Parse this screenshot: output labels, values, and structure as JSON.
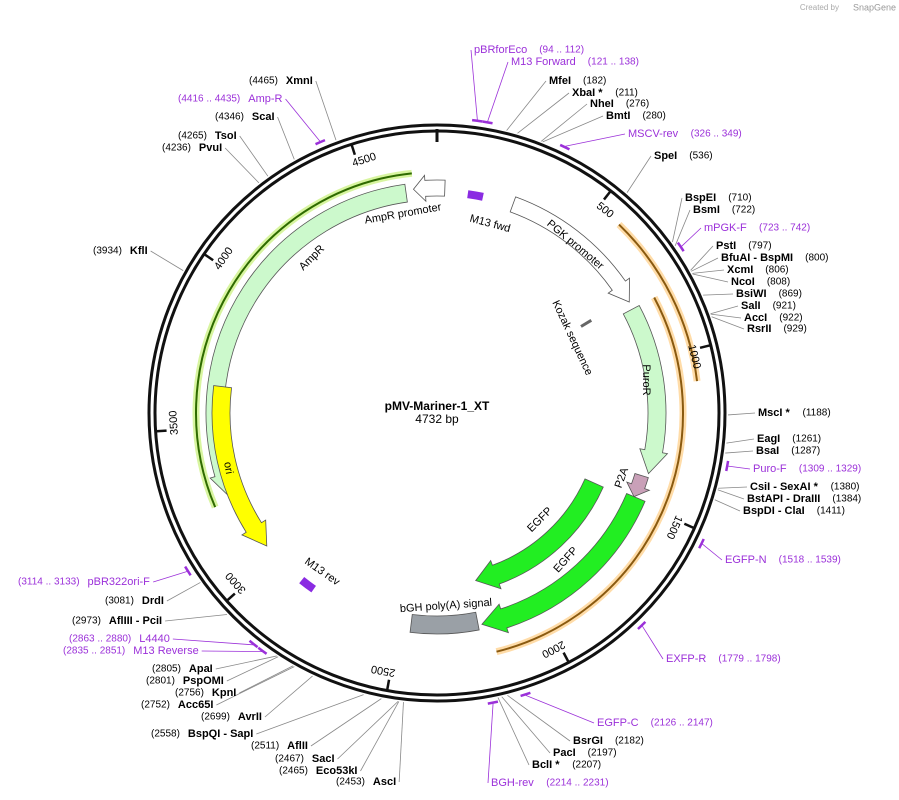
{
  "header": {
    "credit": "Created by",
    "brand": "SnapGene"
  },
  "map": {
    "name": "pMV-Mariner-1_XT",
    "length": "4732 bp"
  },
  "ring": {
    "ticks": [
      500,
      1000,
      1500,
      2000,
      2500,
      3000,
      3500,
      4000,
      4500
    ]
  },
  "sites": [
    {
      "name": "MfeI",
      "pos": "(182)"
    },
    {
      "name": "XbaI *",
      "pos": "(211)"
    },
    {
      "name": "NheI",
      "pos": "(276)"
    },
    {
      "name": "BmtI",
      "pos": "(280)"
    },
    {
      "name": "SpeI",
      "pos": "(536)"
    },
    {
      "name": "BspEI",
      "pos": "(710)"
    },
    {
      "name": "BsmI",
      "pos": "(722)"
    },
    {
      "name": "PstI",
      "pos": "(797)"
    },
    {
      "name": "BfuAI  -  BspMI",
      "pos": "(800)"
    },
    {
      "name": "XcmI",
      "pos": "(806)"
    },
    {
      "name": "NcoI",
      "pos": "(808)"
    },
    {
      "name": "BsiWI",
      "pos": "(869)"
    },
    {
      "name": "SalI",
      "pos": "(921)"
    },
    {
      "name": "AccI",
      "pos": "(922)"
    },
    {
      "name": "RsrII",
      "pos": "(929)"
    },
    {
      "name": "MscI *",
      "pos": "(1188)"
    },
    {
      "name": "EagI",
      "pos": "(1261)"
    },
    {
      "name": "BsaI",
      "pos": "(1287)"
    },
    {
      "name": "CsiI  -  SexAI *",
      "pos": "(1380)"
    },
    {
      "name": "BstAPI  -  DraIII",
      "pos": "(1384)"
    },
    {
      "name": "BspDI  -  ClaI",
      "pos": "(1411)"
    },
    {
      "name": "BsrGI",
      "pos": "(2182)"
    },
    {
      "name": "PacI",
      "pos": "(2197)"
    },
    {
      "name": "BclI *",
      "pos": "(2207)"
    },
    {
      "name": "AscI",
      "pos": "(2453)"
    },
    {
      "name": "Eco53kI",
      "pos": "(2465)"
    },
    {
      "name": "SacI",
      "pos": "(2467)"
    },
    {
      "name": "AflII",
      "pos": "(2511)"
    },
    {
      "name": "BspQI  -  SapI",
      "pos": "(2558)"
    },
    {
      "name": "AvrII",
      "pos": "(2699)"
    },
    {
      "name": "Acc65I",
      "pos": "(2752)"
    },
    {
      "name": "KpnI",
      "pos": "(2756)"
    },
    {
      "name": "PspOMI",
      "pos": "(2801)"
    },
    {
      "name": "ApaI",
      "pos": "(2805)"
    },
    {
      "name": "AflIII  -  PciI",
      "pos": "(2973)"
    },
    {
      "name": "DrdI",
      "pos": "(3081)"
    },
    {
      "name": "KflI",
      "pos": "(3934)"
    },
    {
      "name": "PvuI",
      "pos": "(4236)"
    },
    {
      "name": "TsoI",
      "pos": "(4265)"
    },
    {
      "name": "ScaI",
      "pos": "(4346)"
    },
    {
      "name": "XmnI",
      "pos": "(4465)"
    }
  ],
  "primers": [
    {
      "name": "pBRforEco",
      "pos": "(94 .. 112)"
    },
    {
      "name": "M13 Forward",
      "pos": "(121 .. 138)"
    },
    {
      "name": "MSCV-rev",
      "pos": "(326 .. 349)"
    },
    {
      "name": "mPGK-F",
      "pos": "(723 .. 742)"
    },
    {
      "name": "Puro-F",
      "pos": "(1309 .. 1329)"
    },
    {
      "name": "EGFP-N",
      "pos": "(1518 .. 1539)"
    },
    {
      "name": "EXFP-R",
      "pos": "(1779 .. 1798)"
    },
    {
      "name": "EGFP-C",
      "pos": "(2126 .. 2147)"
    },
    {
      "name": "BGH-rev",
      "pos": "(2214 .. 2231)"
    },
    {
      "name": "L4440",
      "pos": "(2863 .. 2880)"
    },
    {
      "name": "M13 Reverse",
      "pos": "(2835 .. 2851)"
    },
    {
      "name": "pBR322ori-F",
      "pos": "(3114 .. 3133)"
    },
    {
      "name": "Amp-R",
      "pos": "(4416 .. 4435)"
    }
  ],
  "features": [
    "AmpR promoter",
    "AmpR",
    "M13 fwd",
    "PGK promoter",
    "Kozak sequence",
    "PuroR",
    "P2A",
    "EGFP",
    "EGFP",
    "bGH poly(A) signal",
    "M13 rev",
    "ori"
  ]
}
